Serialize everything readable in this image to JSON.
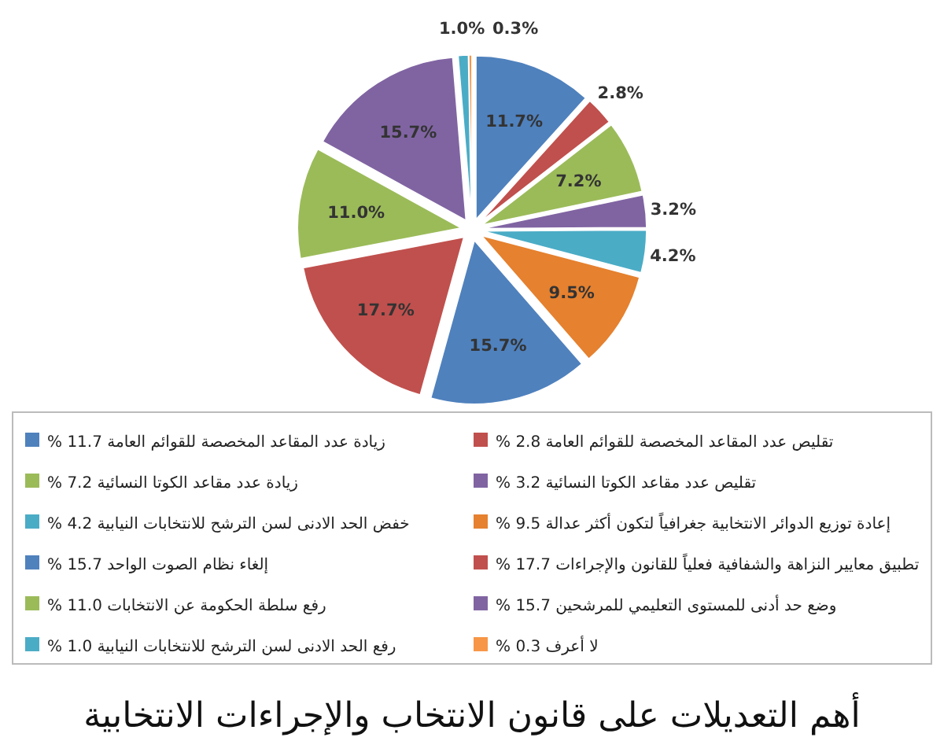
{
  "chart_data": {
    "type": "pie",
    "title": "أهم التعديلات على قانون الانتخاب والإجراءات الانتخابية",
    "categories": [
      "زيادة عدد المقاعد المخصصة للقوائم العامة 11.7 %",
      "تقليص عدد المقاعد المخصصة للقوائم العامة 2.8 %",
      "زيادة عدد مقاعد الكوتا النسائية 7.2 %",
      "تقليص عدد مقاعد الكوتا النسائية 3.2 %",
      "خفض الحد الادنى لسن الترشح للانتخابات النيابية 4.2 %",
      "إعادة توزيع الدوائر الانتخابية جغرافياً لتكون أكثر عدالة 9.5 %",
      "إلغاء نظام الصوت الواحد 15.7 %",
      "تطبيق معايير النزاهة والشفافية فعلياً للقانون والإجراءات 17.7 %",
      "رفع سلطة الحكومة عن الانتخابات 11.0 %",
      "وضع حد أدنى للمستوى التعليمي للمرشحين 15.7 %",
      "رفع الحد الادنى لسن الترشح للانتخابات النيابية 1.0 %",
      "لا أعرف 0.3 %"
    ],
    "values": [
      11.7,
      2.8,
      7.2,
      3.2,
      4.2,
      9.5,
      15.7,
      17.7,
      11.0,
      15.7,
      1.0,
      0.3
    ],
    "value_labels": [
      "11.7%",
      "2.8%",
      "7.2%",
      "3.2%",
      "4.2%",
      "9.5%",
      "15.7%",
      "17.7%",
      "11.0%",
      "15.7%",
      "1.0%",
      "0.3%"
    ],
    "colors": [
      "#4f81bd",
      "#c0504d",
      "#9bbb59",
      "#8064a2",
      "#4bacc6",
      "#e5812f",
      "#4f81bd",
      "#c0504d",
      "#9bbb59",
      "#8064a2",
      "#4bacc6",
      "#f79646"
    ],
    "legend": "bottom"
  }
}
